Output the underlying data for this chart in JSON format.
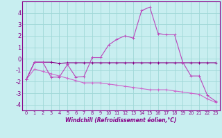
{
  "xlabel": "Windchill (Refroidissement éolien,°C)",
  "background_color": "#c8eef0",
  "grid_color": "#a0d8d8",
  "line_color_dark": "#880088",
  "line_color_mid": "#bb44bb",
  "line_color_light": "#cc66cc",
  "xlim": [
    -0.5,
    23.5
  ],
  "ylim": [
    -4.5,
    5.0
  ],
  "xticks": [
    0,
    1,
    2,
    3,
    4,
    5,
    6,
    7,
    8,
    9,
    10,
    11,
    12,
    13,
    14,
    15,
    16,
    17,
    18,
    19,
    20,
    21,
    22,
    23
  ],
  "yticks": [
    -4,
    -3,
    -2,
    -1,
    0,
    1,
    2,
    3,
    4
  ],
  "series1_x": [
    0,
    1,
    2,
    3,
    4,
    5,
    6,
    7,
    8,
    9,
    10,
    11,
    12,
    13,
    14,
    15,
    16,
    17,
    18,
    19,
    20,
    21,
    22,
    23
  ],
  "series1_y": [
    -1.8,
    -0.3,
    -0.3,
    -0.3,
    -0.4,
    -0.35,
    -0.35,
    -0.35,
    -0.35,
    -0.35,
    -0.35,
    -0.35,
    -0.35,
    -0.35,
    -0.35,
    -0.35,
    -0.35,
    -0.35,
    -0.35,
    -0.35,
    -0.35,
    -0.35,
    -0.35,
    -0.35
  ],
  "series2_x": [
    0,
    1,
    2,
    3,
    4,
    5,
    6,
    7,
    8,
    9,
    10,
    11,
    12,
    13,
    14,
    15,
    16,
    17,
    18,
    19,
    20,
    21,
    22,
    23
  ],
  "series2_y": [
    -1.8,
    -0.3,
    -0.3,
    -1.6,
    -1.6,
    -0.5,
    -1.6,
    -1.55,
    0.1,
    0.1,
    1.2,
    1.7,
    2.0,
    1.8,
    4.2,
    4.5,
    2.2,
    2.1,
    2.1,
    -0.3,
    -1.5,
    -1.5,
    -3.2,
    -3.7
  ],
  "series3_x": [
    0,
    1,
    2,
    3,
    4,
    5,
    6,
    7,
    8,
    9,
    10,
    11,
    12,
    13,
    14,
    15,
    16,
    17,
    18,
    19,
    20,
    21,
    22,
    23
  ],
  "series3_y": [
    -1.8,
    -0.9,
    -1.1,
    -1.3,
    -1.5,
    -1.7,
    -1.9,
    -2.1,
    -2.1,
    -2.1,
    -2.2,
    -2.3,
    -2.4,
    -2.5,
    -2.6,
    -2.7,
    -2.7,
    -2.7,
    -2.8,
    -2.9,
    -3.0,
    -3.1,
    -3.5,
    -3.8
  ]
}
